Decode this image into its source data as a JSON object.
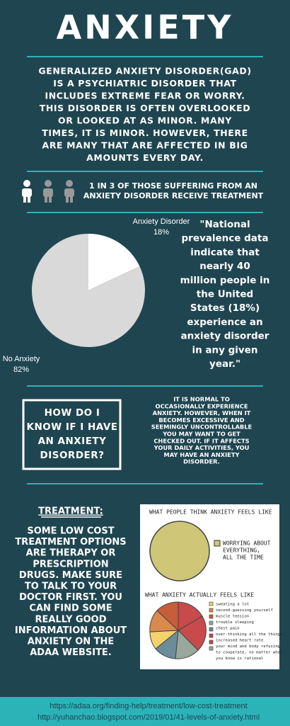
{
  "title": "ANXIETY",
  "intro": {
    "lines": [
      "GENERALIZED ANXIETY DISORDER(GAD)",
      "IS A PSYCHIATRIC DISORDER THAT",
      "INCLUDES EXTREME FEAR OR WORRY.",
      "THIS DISORDER IS OFTEN OVERLOOKED",
      "OR LOOKED AT AS MINOR. MANY",
      "TIMES, IT IS MINOR. HOWEVER, THERE",
      "ARE MANY THAT ARE AFFECTED IN BIG",
      "AMOUNTS EVERY DAY."
    ]
  },
  "stat": {
    "lines": [
      "1 IN 3 OF THOSE SUFFERING FROM AN",
      "ANXIETY DISORDER RECEIVE TREATMENT"
    ]
  },
  "chart_data": {
    "type": "pie",
    "categories": [
      "Anxiety Disorder",
      "No Anxiety"
    ],
    "values": [
      18,
      82
    ],
    "value_labels": [
      "18%",
      "82%"
    ],
    "colors": [
      "#ffffff",
      "#d9d9d9"
    ]
  },
  "quote": {
    "lines": [
      "\"National",
      "prevalence data",
      "indicate that",
      "nearly 40",
      "million people in",
      "the United",
      "States (18%)",
      "experience an",
      "anxiety disorder",
      "in any given",
      "year.\""
    ]
  },
  "question": {
    "lines": [
      "HOW DO I",
      "KNOW IF I HAVE",
      "AN ANXIETY",
      "DISORDER?"
    ]
  },
  "answer": {
    "lines": [
      "IT IS NORMAL TO",
      "OCCASIONALLY EXPERIENCE",
      "ANXIETY. HOWEVER, WHEN IT",
      "BECOMES EXCESSIVE AND",
      "SEEMINGLY UNCONTROLLABLE",
      "YOU MAY WANT TO GET",
      "CHECKED OUT. IF IT AFFECTS",
      "YOUR DAILY ACTIVITIES, YOU",
      "MAY HAVE AN ANXIETY",
      "DISORDER."
    ]
  },
  "treatment": {
    "heading": "TREATMENT:",
    "lines": [
      "SOME LOW COST",
      "TREATMENT OPTIONS",
      "ARE THERAPY OR",
      "PRESCRIPTION",
      "DRUGS. MAKE SURE",
      "TO TALK TO YOUR",
      "DOCTOR FIRST. YOU",
      "CAN FIND SOME",
      "REALLY GOOD",
      "INFORMATION ABOUT",
      "ANXIETY ON THE",
      "ADAA WEBSITE."
    ]
  },
  "illustration": {
    "think_heading": "WHAT PEOPLE THINK ANXIETY FEELS LIKE",
    "think_legend": [
      "WORRYING ABOUT",
      "EVERYTHING,",
      "ALL THE TIME"
    ],
    "actual_heading": "WHAT ANXIETY ACTUALLY FEELS LIKE",
    "actual_legend": [
      "sweating a lot",
      "second-guessing yourself",
      "muscle tension",
      "trouble sleeping",
      "chest pain",
      "over-thinking all the things",
      "increased heart rate",
      "your mind and body refusing",
      "to cooperate, no matter what",
      "you know is rational"
    ]
  },
  "sources": [
    "https://adaa.org/finding-help/treatment/low-cost-treatment",
    "http://yuhanchao.blogspot.com/2019/01/41-levels-of-anxiety.html"
  ]
}
